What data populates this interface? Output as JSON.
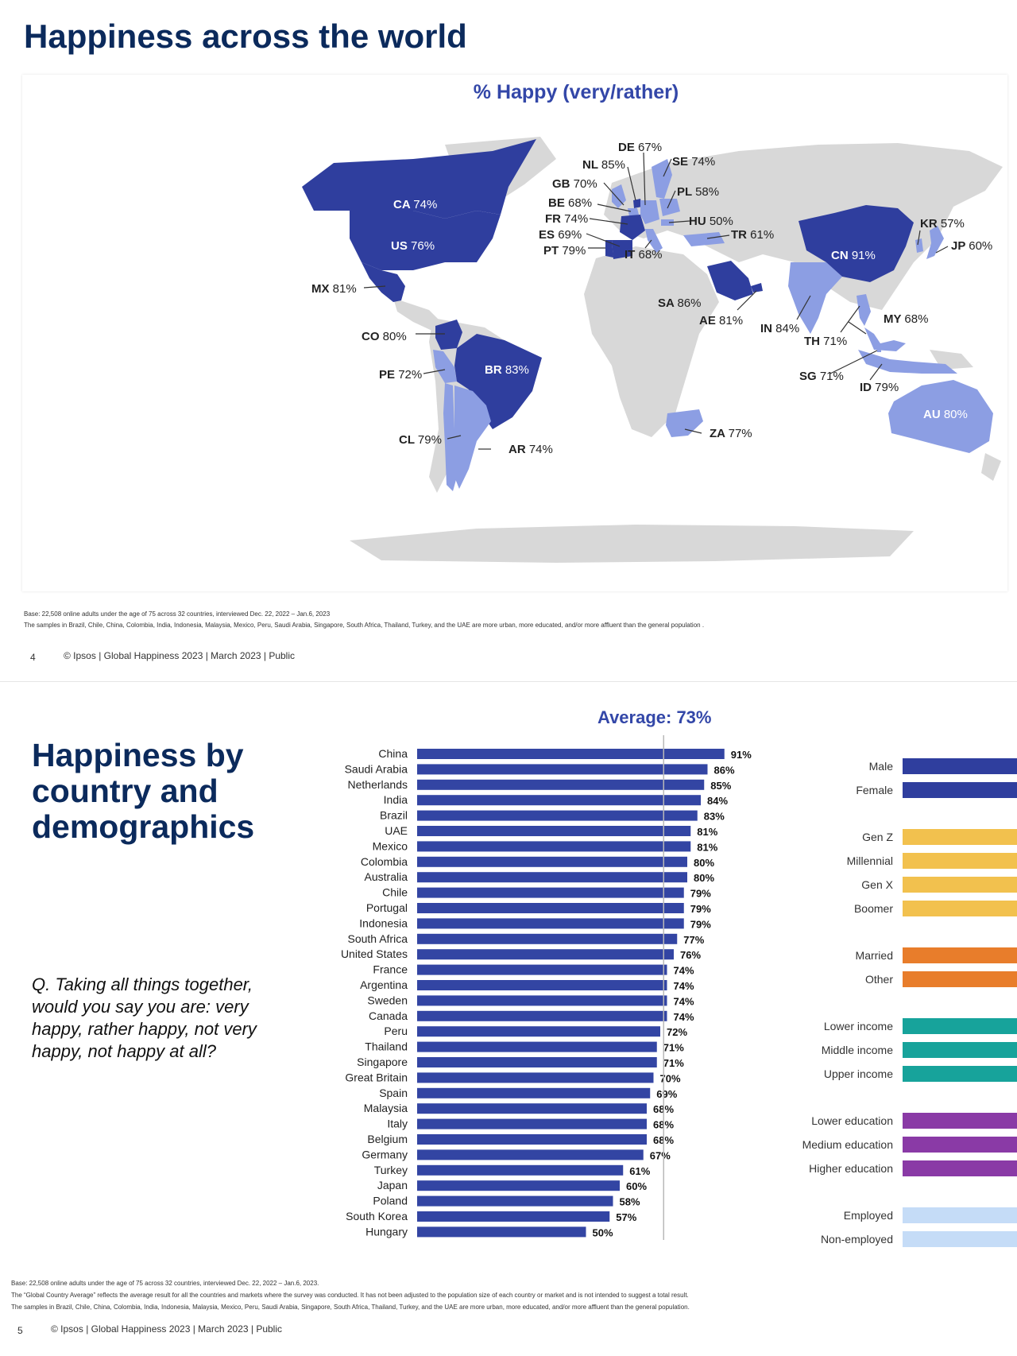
{
  "slide1": {
    "title": "Happiness across the world",
    "subtitle": "% Happy (very/rather)",
    "base_note": "Base: 22,508 online adults under the age of 75 across 32 countries, interviewed Dec. 22, 2022 – Jan.6, 2023",
    "sample_note": "The samples in Brazil, Chile, China, Colombia, India, Indonesia, Malaysia, Mexico, Peru, Saudi Arabia, Singapore, South Africa, Thailand, Turkey, and the UAE are more urban, more educated, and/or more affluent than the general population .",
    "page_number": "4",
    "footer": "© Ipsos | Global Happiness 2023 | March 2023 | Public",
    "colors": {
      "dark": "#2f3e9e",
      "light": "#8c9ee3",
      "land": "#d8d8d8"
    }
  },
  "chart_data": [
    {
      "type": "map",
      "title": "% Happy (very/rather)",
      "labels": [
        {
          "code": "CA",
          "value": "74%"
        },
        {
          "code": "US",
          "value": "76%"
        },
        {
          "code": "MX",
          "value": "81%"
        },
        {
          "code": "CO",
          "value": "80%"
        },
        {
          "code": "PE",
          "value": "72%"
        },
        {
          "code": "BR",
          "value": "83%"
        },
        {
          "code": "CL",
          "value": "79%"
        },
        {
          "code": "AR",
          "value": "74%"
        },
        {
          "code": "GB",
          "value": "70%"
        },
        {
          "code": "NL",
          "value": "85%"
        },
        {
          "code": "DE",
          "value": "67%"
        },
        {
          "code": "SE",
          "value": "74%"
        },
        {
          "code": "PL",
          "value": "58%"
        },
        {
          "code": "BE",
          "value": "68%"
        },
        {
          "code": "FR",
          "value": "74%"
        },
        {
          "code": "ES",
          "value": "69%"
        },
        {
          "code": "PT",
          "value": "79%"
        },
        {
          "code": "IT",
          "value": "68%"
        },
        {
          "code": "HU",
          "value": "50%"
        },
        {
          "code": "TR",
          "value": "61%"
        },
        {
          "code": "SA",
          "value": "86%"
        },
        {
          "code": "AE",
          "value": "81%"
        },
        {
          "code": "ZA",
          "value": "77%"
        },
        {
          "code": "IN",
          "value": "84%"
        },
        {
          "code": "TH",
          "value": "71%"
        },
        {
          "code": "SG",
          "value": "71%"
        },
        {
          "code": "MY",
          "value": "68%"
        },
        {
          "code": "ID",
          "value": "79%"
        },
        {
          "code": "CN",
          "value": "91%"
        },
        {
          "code": "KR",
          "value": "57%"
        },
        {
          "code": "JP",
          "value": "60%"
        },
        {
          "code": "AU",
          "value": "80%"
        }
      ]
    },
    {
      "type": "bar",
      "orientation": "horizontal",
      "average_label": "Average: 73%",
      "average": 73,
      "xlim": [
        0,
        100
      ],
      "color": "#3345a3",
      "categories": [
        "China",
        "Saudi Arabia",
        "Netherlands",
        "India",
        "Brazil",
        "UAE",
        "Mexico",
        "Colombia",
        "Australia",
        "Chile",
        "Portugal",
        "Indonesia",
        "South Africa",
        "United States",
        "France",
        "Argentina",
        "Sweden",
        "Canada",
        "Peru",
        "Thailand",
        "Singapore",
        "Great Britain",
        "Spain",
        "Malaysia",
        "Italy",
        "Belgium",
        "Germany",
        "Turkey",
        "Japan",
        "Poland",
        "South Korea",
        "Hungary"
      ],
      "values": [
        91,
        86,
        85,
        84,
        83,
        81,
        81,
        80,
        80,
        79,
        79,
        79,
        77,
        76,
        74,
        74,
        74,
        74,
        72,
        71,
        71,
        70,
        69,
        68,
        68,
        68,
        67,
        61,
        60,
        58,
        57,
        50
      ],
      "value_labels": [
        "91%",
        "86%",
        "85%",
        "84%",
        "83%",
        "81%",
        "81%",
        "80%",
        "80%",
        "79%",
        "79%",
        "79%",
        "77%",
        "76%",
        "74%",
        "74%",
        "74%",
        "74%",
        "72%",
        "71%",
        "71%",
        "70%",
        "69%",
        "68%",
        "68%",
        "68%",
        "67%",
        "61%",
        "60%",
        "58%",
        "57%",
        "50%"
      ]
    }
  ],
  "slide2": {
    "title_line1": "Happiness by",
    "title_line2": "country and",
    "title_line3": "demographics",
    "question": "Q. Taking all things together, would you say you are: very happy, rather happy, not very happy, not happy at all?",
    "demographics": [
      {
        "label": "Male",
        "color": "#2f3e9e"
      },
      {
        "label": "Female",
        "color": "#2f3e9e"
      },
      {
        "label": "Gen Z",
        "color": "#f2c14e"
      },
      {
        "label": "Millennial",
        "color": "#f2c14e"
      },
      {
        "label": "Gen X",
        "color": "#f2c14e"
      },
      {
        "label": "Boomer",
        "color": "#f2c14e"
      },
      {
        "label": "Married",
        "color": "#e87d2b"
      },
      {
        "label": "Other",
        "color": "#e87d2b"
      },
      {
        "label": "Lower income",
        "color": "#17a39b"
      },
      {
        "label": "Middle income",
        "color": "#17a39b"
      },
      {
        "label": "Upper income",
        "color": "#17a39b"
      },
      {
        "label": "Lower education",
        "color": "#8a3aa6"
      },
      {
        "label": "Medium education",
        "color": "#8a3aa6"
      },
      {
        "label": "Higher education",
        "color": "#8a3aa6"
      },
      {
        "label": "Employed",
        "color": "#c5dcf7"
      },
      {
        "label": "Non-employed",
        "color": "#c5dcf7"
      }
    ],
    "base_note": "Base: 22,508 online adults under the age of 75 across 32 countries, interviewed Dec. 22, 2022 – Jan.6, 2023.",
    "avg_note": "The “Global Country Average” reflects the average result for all the countries and markets where the survey was conducted. It has not been adjusted to the population size of each country or market and is not intended to suggest a total result.",
    "sample_note": "The samples in Brazil, Chile, China, Colombia, India, Indonesia, Malaysia, Mexico, Peru, Saudi Arabia, Singapore, South Africa, Thailand, Turkey, and the UAE are more urban, more educated, and/or more affluent than the general population.",
    "page_number": "5",
    "footer": "© Ipsos | Global Happiness 2023 | March 2023 | Public"
  }
}
